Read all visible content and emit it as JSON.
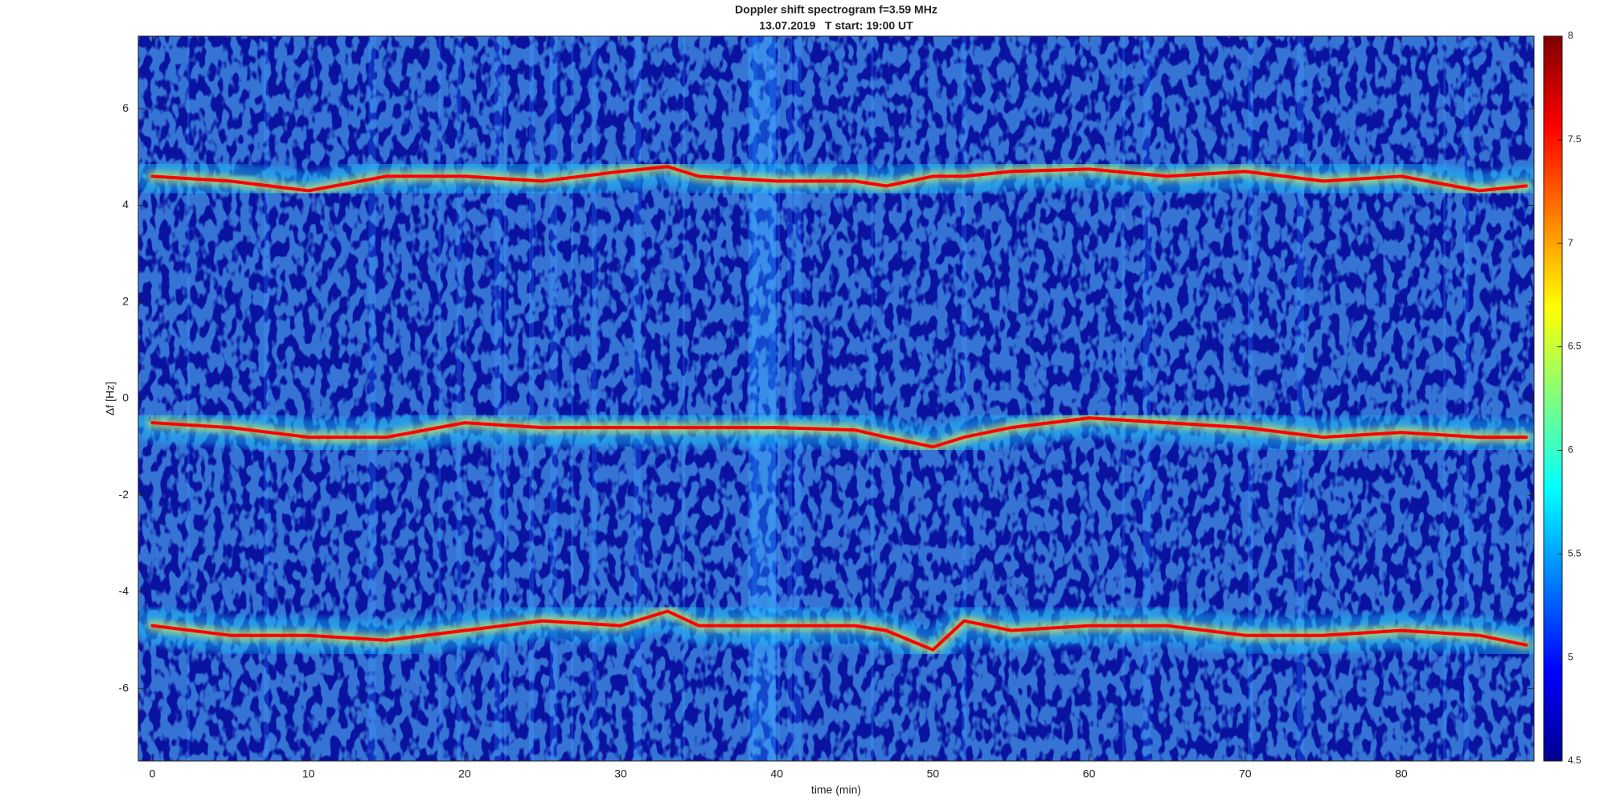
{
  "chart_data": {
    "type": "spectrogram",
    "title": "Doppler shift spectrogram f=3.59 MHz",
    "subtitle": "13.07.2019   T start: 19:00 UT",
    "x_label": "time (min)",
    "y_label": "Δf [Hz]",
    "x": [
      0,
      5,
      10,
      15,
      20,
      25,
      30,
      33,
      35,
      40,
      45,
      47,
      50,
      52,
      55,
      60,
      65,
      70,
      75,
      80,
      85,
      88
    ],
    "series": [
      {
        "color": "#ff0000",
        "values": [
          4.6,
          4.5,
          4.3,
          4.6,
          4.6,
          4.5,
          4.7,
          4.8,
          4.6,
          4.5,
          4.5,
          4.4,
          4.6,
          4.6,
          4.7,
          4.75,
          4.6,
          4.7,
          4.5,
          4.6,
          4.3,
          4.4
        ]
      },
      {
        "color": "#ff0000",
        "values": [
          -0.5,
          -0.6,
          -0.8,
          -0.8,
          -0.5,
          -0.6,
          -0.6,
          -0.6,
          -0.6,
          -0.6,
          -0.65,
          -0.8,
          -1.0,
          -0.8,
          -0.6,
          -0.4,
          -0.5,
          -0.6,
          -0.8,
          -0.7,
          -0.8,
          -0.8
        ]
      },
      {
        "color": "#ff0000",
        "values": [
          -4.7,
          -4.9,
          -4.9,
          -5.0,
          -4.8,
          -4.6,
          -4.7,
          -4.4,
          -4.7,
          -4.7,
          -4.7,
          -4.8,
          -5.2,
          -4.6,
          -4.8,
          -4.7,
          -4.7,
          -4.9,
          -4.9,
          -4.8,
          -4.9,
          -5.1
        ]
      }
    ],
    "xlim": [
      -0.9,
      88.5
    ],
    "ylim": [
      -7.5,
      7.5
    ],
    "xticks": [
      0,
      10,
      20,
      30,
      40,
      50,
      60,
      70,
      80
    ],
    "yticks": [
      -6,
      -4,
      -2,
      0,
      2,
      4,
      6
    ],
    "colorbar": {
      "colormap": "jet",
      "clim": [
        4.5,
        8
      ],
      "ticks": [
        4.5,
        5,
        5.5,
        6,
        6.5,
        7,
        7.5,
        8
      ]
    }
  }
}
